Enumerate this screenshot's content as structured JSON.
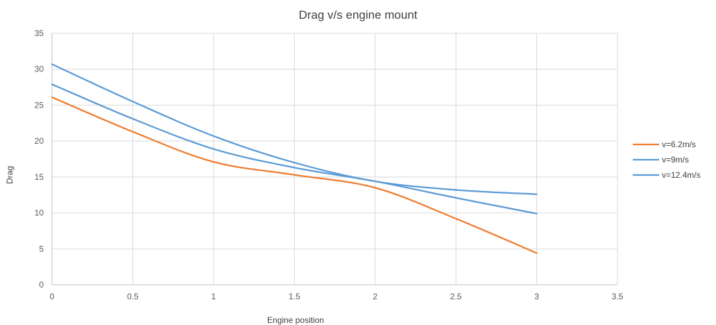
{
  "chart_data": {
    "type": "line",
    "title": "Drag v/s engine mount",
    "xlabel": "Engine position",
    "ylabel": "Drag",
    "xlim": [
      0,
      3.5
    ],
    "ylim": [
      0,
      35
    ],
    "x_ticks": [
      "0",
      "0.5",
      "1",
      "1.5",
      "2",
      "2.5",
      "3",
      "3.5"
    ],
    "y_ticks": [
      "0",
      "5",
      "10",
      "15",
      "20",
      "25",
      "30",
      "35"
    ],
    "grid": true,
    "legend_position": "right",
    "x": [
      0,
      0.5,
      1,
      1.5,
      2,
      2.5,
      3
    ],
    "series": [
      {
        "name": "v=6.2m/s",
        "color": "#ED7D31",
        "values": [
          26.1,
          21.3,
          17.1,
          15.3,
          13.5,
          9.2,
          4.4
        ]
      },
      {
        "name": "v=9m/s",
        "color": "#5B9BD5",
        "values": [
          27.9,
          23.1,
          18.9,
          16.3,
          14.4,
          12.1,
          9.9
        ]
      },
      {
        "name": "v=12.4m/s",
        "color": "#5B9BD5",
        "values": [
          30.7,
          25.5,
          20.7,
          17.0,
          14.4,
          13.2,
          12.6
        ]
      }
    ]
  }
}
